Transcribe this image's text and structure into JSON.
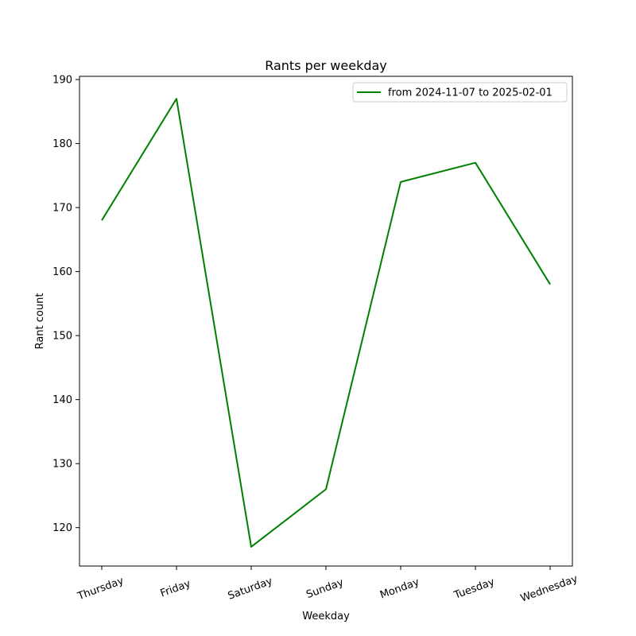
{
  "chart_data": {
    "type": "line",
    "title": "Rants per weekday",
    "xlabel": "Weekday",
    "ylabel": "Rant count",
    "categories": [
      "Thursday",
      "Friday",
      "Saturday",
      "Sunday",
      "Monday",
      "Tuesday",
      "Wednesday"
    ],
    "series": [
      {
        "name": "from 2024-11-07 to 2025-02-01",
        "values": [
          168,
          187,
          117,
          126,
          174,
          177,
          158
        ],
        "color": "#008000"
      }
    ],
    "yticks": [
      120,
      130,
      140,
      150,
      160,
      170,
      180,
      190
    ],
    "ylim": [
      114,
      190.5
    ],
    "grid": false,
    "legend_position": "top-right",
    "xtick_rotation_deg": 20
  }
}
